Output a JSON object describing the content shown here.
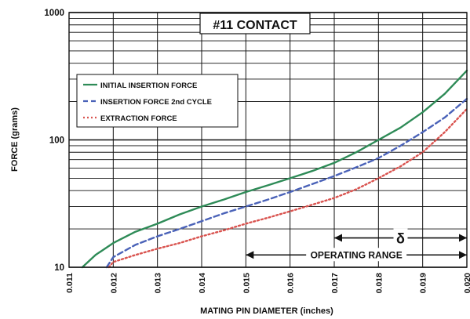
{
  "chart_data": {
    "type": "line",
    "title": "#11 CONTACT",
    "xlabel": "MATING PIN  DIAMETER (inches)",
    "ylabel": "FORCE (grams)",
    "xlim": [
      0.011,
      0.02
    ],
    "ylim": [
      10,
      1000
    ],
    "yscale": "log",
    "grid": true,
    "legend_position": "upper-left",
    "x_tick_labels": [
      "0.011",
      "0.012",
      "0.013",
      "0.014",
      "0.015",
      "0.016",
      "0.017",
      "0.018",
      "0.019",
      "0.020"
    ],
    "y_tick_labels": [
      "10",
      "100",
      "1000"
    ],
    "series": [
      {
        "name": "INITIAL INSERTION FORCE",
        "color": "#2e8b57",
        "dash": "solid",
        "x": [
          0.0113,
          0.0116,
          0.012,
          0.0125,
          0.013,
          0.0135,
          0.014,
          0.0145,
          0.015,
          0.0155,
          0.016,
          0.0165,
          0.017,
          0.0175,
          0.018,
          0.0185,
          0.019,
          0.0195,
          0.02
        ],
        "y": [
          10,
          12.5,
          15.5,
          19,
          22,
          26,
          30,
          34,
          39,
          44,
          50,
          57,
          66,
          80,
          100,
          125,
          165,
          230,
          350
        ]
      },
      {
        "name": "INSERTION FORCE 2nd CYCLE",
        "color": "#4a62b8",
        "dash": "dashed",
        "x": [
          0.01185,
          0.012,
          0.0125,
          0.013,
          0.0135,
          0.014,
          0.0145,
          0.015,
          0.0155,
          0.016,
          0.0165,
          0.017,
          0.0175,
          0.018,
          0.0185,
          0.019,
          0.0195,
          0.02
        ],
        "y": [
          10,
          12,
          15,
          17.5,
          20,
          23,
          26.5,
          30,
          34,
          39,
          45,
          52,
          61,
          72,
          90,
          115,
          150,
          210
        ]
      },
      {
        "name": "EXTRACTION FORCE",
        "color": "#d9534f",
        "dash": "dotted",
        "x": [
          0.0119,
          0.012,
          0.0125,
          0.013,
          0.0135,
          0.014,
          0.0145,
          0.015,
          0.0155,
          0.016,
          0.0165,
          0.017,
          0.0175,
          0.018,
          0.0185,
          0.019,
          0.0195,
          0.02
        ],
        "y": [
          10,
          11,
          12.5,
          14,
          15.5,
          17.5,
          19.5,
          22,
          24.5,
          27.5,
          31,
          35,
          41,
          50,
          62,
          80,
          115,
          175
        ]
      }
    ],
    "annotations": [
      {
        "label": "δ",
        "x_start": 0.017,
        "x_end": 0.02,
        "y": 17
      },
      {
        "label": "OPERATING RANGE",
        "x_start": 0.015,
        "x_end": 0.02,
        "y": 12.5
      }
    ]
  }
}
